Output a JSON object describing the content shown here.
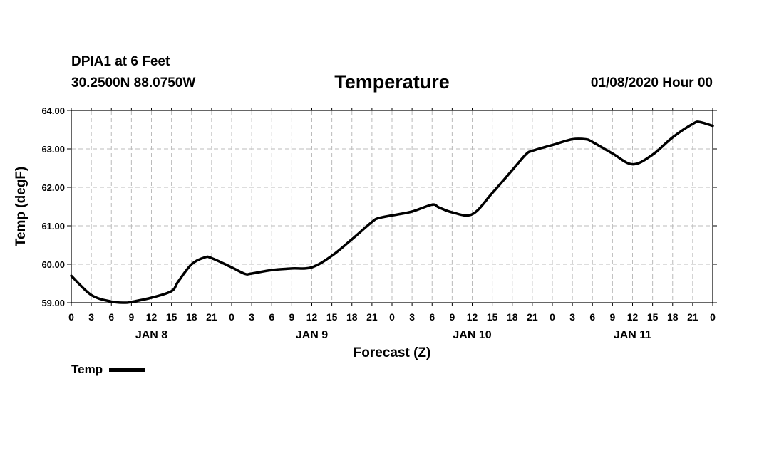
{
  "header": {
    "station": "DPIA1 at 6 Feet",
    "coords": "30.2500N 88.0750W",
    "title": "Temperature",
    "runtime": "01/08/2020 Hour 00"
  },
  "legend": {
    "label": "Temp"
  },
  "colors": {
    "line": "#000000",
    "grid": "#bbbbbb",
    "background": "#ffffff"
  },
  "chart_data": {
    "type": "line",
    "title": "Temperature",
    "xlabel": "Forecast (Z)",
    "ylabel": "Temp (degF)",
    "ylim": [
      59.0,
      64.0
    ],
    "xlim_hours": [
      0,
      96
    ],
    "y_ticks": [
      "59.00",
      "60.00",
      "61.00",
      "62.00",
      "63.00",
      "64.00"
    ],
    "x_tick_labels": [
      "0",
      "3",
      "6",
      "9",
      "12",
      "15",
      "18",
      "21",
      "0",
      "3",
      "6",
      "9",
      "12",
      "15",
      "18",
      "21",
      "0",
      "3",
      "6",
      "9",
      "12",
      "15",
      "18",
      "21",
      "0",
      "3",
      "6",
      "9",
      "12",
      "15",
      "18",
      "21",
      "0"
    ],
    "day_labels": [
      {
        "label": "JAN 8",
        "hour": 12
      },
      {
        "label": "JAN 9",
        "hour": 36
      },
      {
        "label": "JAN 10",
        "hour": 60
      },
      {
        "label": "JAN 11",
        "hour": 84
      }
    ],
    "grid": true,
    "legend_position": "bottom-left",
    "series": [
      {
        "name": "Temp",
        "x": [
          0,
          3,
          6,
          8,
          9,
          12,
          15,
          16,
          18,
          20,
          21,
          24,
          26,
          27,
          30,
          33,
          36,
          39,
          42,
          45,
          46,
          48,
          51,
          54,
          55,
          57,
          60,
          63,
          66,
          68,
          69,
          72,
          75,
          77,
          78,
          81,
          84,
          87,
          90,
          93,
          94,
          96
        ],
        "values": [
          59.7,
          59.2,
          59.03,
          59.0,
          59.02,
          59.13,
          59.3,
          59.55,
          60.0,
          60.18,
          60.16,
          59.92,
          59.75,
          59.76,
          59.85,
          59.89,
          59.92,
          60.22,
          60.65,
          61.1,
          61.2,
          61.27,
          61.37,
          61.55,
          61.48,
          61.35,
          61.3,
          61.85,
          62.45,
          62.85,
          62.95,
          63.1,
          63.25,
          63.25,
          63.18,
          62.88,
          62.6,
          62.85,
          63.3,
          63.65,
          63.7,
          63.6
        ]
      }
    ]
  }
}
